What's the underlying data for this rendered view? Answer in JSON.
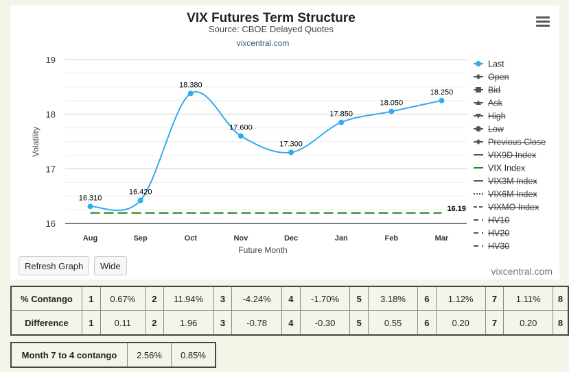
{
  "chart_data": {
    "type": "line",
    "title": "VIX Futures Term Structure",
    "subtitle": "Source: CBOE Delayed Quotes",
    "source_link": "vixcentral.com",
    "credit": "vixcentral.com",
    "xlabel": "Future Month",
    "ylabel": "Volatility",
    "categories": [
      "Aug",
      "Sep",
      "Oct",
      "Nov",
      "Dec",
      "Jan",
      "Feb",
      "Mar"
    ],
    "ylim": [
      16,
      19
    ],
    "yticks": [
      "16",
      "17",
      "18",
      "19"
    ],
    "grid": true,
    "legend_position": "right",
    "series": [
      {
        "name": "Last",
        "values": [
          16.31,
          16.42,
          18.38,
          17.6,
          17.3,
          17.85,
          18.05,
          18.25
        ],
        "labels": [
          "16.310",
          "16.420",
          "18.380",
          "17.600",
          "17.300",
          "17.850",
          "18.050",
          "18.250"
        ],
        "color": "#33aaee",
        "style": "smooth"
      },
      {
        "name": "VIX Index",
        "value": 16.19,
        "label": "16.19",
        "color": "#228822",
        "style": "dashed"
      }
    ],
    "legend": [
      {
        "name": "Last",
        "enabled": true,
        "symbol": "circle",
        "dash": "solid",
        "color": "#33aaee"
      },
      {
        "name": "Open",
        "enabled": false,
        "symbol": "diamond",
        "dash": "solid",
        "color": "#555555"
      },
      {
        "name": "Bid",
        "enabled": false,
        "symbol": "square",
        "dash": "solid",
        "color": "#555555"
      },
      {
        "name": "Ask",
        "enabled": false,
        "symbol": "triangle",
        "dash": "solid",
        "color": "#555555"
      },
      {
        "name": "High",
        "enabled": false,
        "symbol": "triangle-down",
        "dash": "solid",
        "color": "#555555"
      },
      {
        "name": "Low",
        "enabled": false,
        "symbol": "circle",
        "dash": "solid",
        "color": "#555555"
      },
      {
        "name": "Previous Close",
        "enabled": false,
        "symbol": "diamond",
        "dash": "solid",
        "color": "#555555"
      },
      {
        "name": "VIX9D Index",
        "enabled": false,
        "symbol": "none",
        "dash": "solid",
        "color": "#555555"
      },
      {
        "name": "VIX Index",
        "enabled": true,
        "symbol": "none",
        "dash": "solid",
        "color": "#228822"
      },
      {
        "name": "VIX3M Index",
        "enabled": false,
        "symbol": "none",
        "dash": "solid",
        "color": "#555555"
      },
      {
        "name": "VIX6M Index",
        "enabled": false,
        "symbol": "none",
        "dash": "dotted",
        "color": "#555555"
      },
      {
        "name": "VIXMO Index",
        "enabled": false,
        "symbol": "none",
        "dash": "dashed",
        "color": "#555555"
      },
      {
        "name": "HV10",
        "enabled": false,
        "symbol": "none",
        "dash": "longdash",
        "color": "#555555"
      },
      {
        "name": "HV20",
        "enabled": false,
        "symbol": "none",
        "dash": "longdash",
        "color": "#555555"
      },
      {
        "name": "HV30",
        "enabled": false,
        "symbol": "none",
        "dash": "longdash",
        "color": "#555555"
      }
    ]
  },
  "buttons": {
    "refresh": "Refresh Graph",
    "wide": "Wide"
  },
  "stats_table": {
    "rows": [
      {
        "label": "% Contango",
        "cells": [
          "1",
          "0.67%",
          "2",
          "11.94%",
          "3",
          "-4.24%",
          "4",
          "-1.70%",
          "5",
          "3.18%",
          "6",
          "1.12%",
          "7",
          "1.11%",
          "8"
        ]
      },
      {
        "label": "Difference",
        "cells": [
          "1",
          "0.11",
          "2",
          "1.96",
          "3",
          "-0.78",
          "4",
          "-0.30",
          "5",
          "0.55",
          "6",
          "0.20",
          "7",
          "0.20",
          "8"
        ]
      }
    ]
  },
  "month_table": {
    "label": "Month 7 to 4 contango",
    "values": [
      "2.56%",
      "0.85%"
    ]
  }
}
